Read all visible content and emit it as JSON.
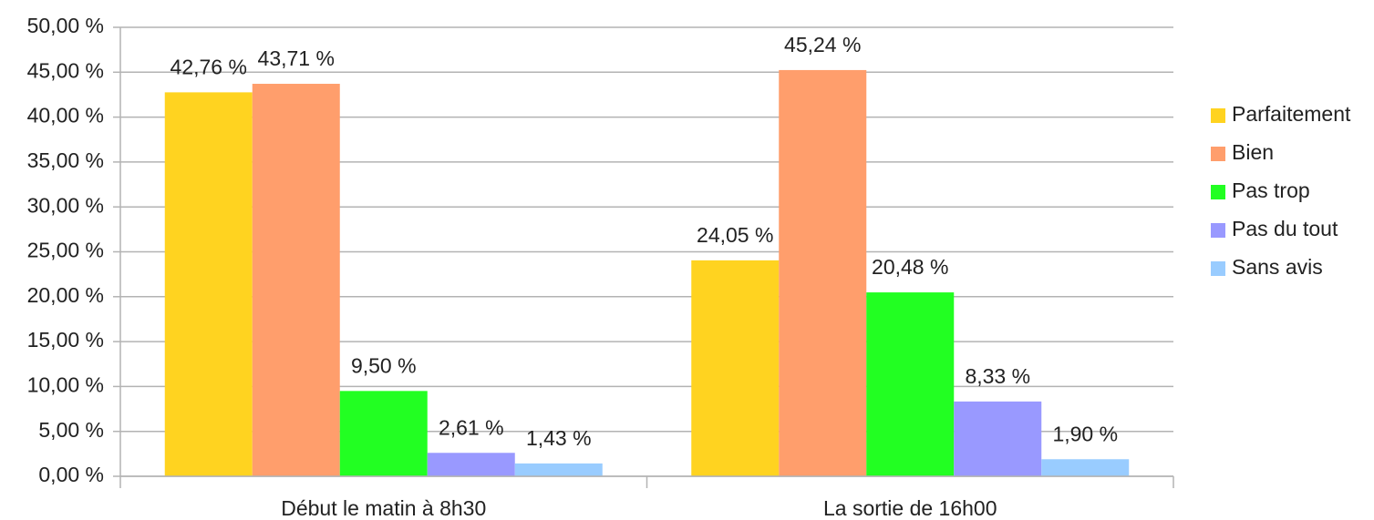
{
  "chart_data": {
    "type": "bar",
    "categories": [
      "Début le matin à 8h30",
      "La sortie de 16h00"
    ],
    "series": [
      {
        "name": "Parfaitement",
        "color": "#ffd320",
        "values": [
          42.76,
          24.05
        ],
        "value_labels": [
          "42,76 %",
          "24,05 %"
        ]
      },
      {
        "name": "Bien",
        "color": "#ff9e6c",
        "values": [
          43.71,
          45.24
        ],
        "value_labels": [
          "43,71 %",
          "45,24 %"
        ]
      },
      {
        "name": "Pas trop",
        "color": "#22ff22",
        "values": [
          9.5,
          20.48
        ],
        "value_labels": [
          "9,50 %",
          "20,48 %"
        ]
      },
      {
        "name": "Pas du tout",
        "color": "#9999ff",
        "values": [
          2.61,
          8.33
        ],
        "value_labels": [
          "2,61 %",
          "8,33 %"
        ]
      },
      {
        "name": "Sans avis",
        "color": "#99ccff",
        "values": [
          1.43,
          1.9
        ],
        "value_labels": [
          "1,43 %",
          "1,90 %"
        ]
      }
    ],
    "ylim": [
      0,
      50
    ],
    "yticks": [
      {
        "value": 0,
        "label": "0,00 %"
      },
      {
        "value": 5,
        "label": "5,00 %"
      },
      {
        "value": 10,
        "label": "10,00 %"
      },
      {
        "value": 15,
        "label": "15,00 %"
      },
      {
        "value": 20,
        "label": "20,00 %"
      },
      {
        "value": 25,
        "label": "25,00 %"
      },
      {
        "value": 30,
        "label": "30,00 %"
      },
      {
        "value": 35,
        "label": "35,00 %"
      },
      {
        "value": 40,
        "label": "40,00 %"
      },
      {
        "value": 45,
        "label": "45,00 %"
      },
      {
        "value": 50,
        "label": "50,00 %"
      }
    ],
    "grid": true,
    "legend": "right"
  }
}
